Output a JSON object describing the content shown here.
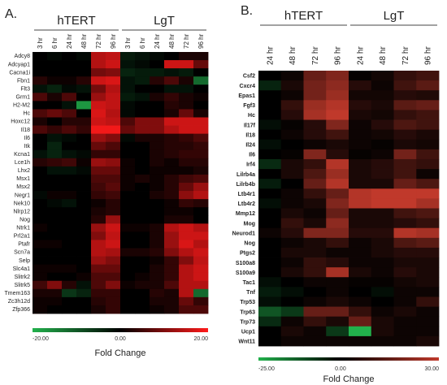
{
  "chart_data": [
    {
      "type": "heatmap",
      "panel_label": "A.",
      "groups": [
        "hTERT",
        "LgT"
      ],
      "columns": [
        "3 hr",
        "6 hr",
        "24 hr",
        "48 hr",
        "72 hr",
        "96 hr",
        "3 hr",
        "6 hr",
        "24 hr",
        "48 hr",
        "72 hr",
        "96 hr"
      ],
      "rows": [
        {
          "label": "Adcy8",
          "values": [
            0,
            -1,
            0,
            -1,
            14,
            15,
            -3,
            -2,
            -1,
            0,
            2,
            2
          ]
        },
        {
          "label": "Adcyap1",
          "values": [
            0,
            0,
            0,
            0,
            14,
            16,
            -2,
            -1,
            0,
            16,
            16,
            8
          ]
        },
        {
          "label": "Cacna1i",
          "values": [
            0,
            0,
            0,
            0,
            9,
            10,
            -4,
            -3,
            -3,
            -2,
            -3,
            0
          ]
        },
        {
          "label": "Fbn1",
          "values": [
            3,
            1,
            1,
            3,
            16,
            17,
            -2,
            -3,
            3,
            6,
            2,
            -12
          ]
        },
        {
          "label": "Flt3",
          "values": [
            -2,
            -4,
            -1,
            -2,
            9,
            14,
            -2,
            0,
            0,
            -2,
            -2,
            0
          ]
        },
        {
          "label": "Grm1",
          "values": [
            6,
            2,
            6,
            0,
            12,
            15,
            -3,
            -2,
            2,
            4,
            2,
            1
          ]
        },
        {
          "label": "H2-M2",
          "values": [
            0,
            0,
            -2,
            -17,
            16,
            15,
            -1,
            0,
            0,
            3,
            2,
            0
          ]
        },
        {
          "label": "Hc",
          "values": [
            6,
            8,
            6,
            0,
            17,
            14,
            -1,
            0,
            0,
            2,
            8,
            2
          ]
        },
        {
          "label": "Hoxc12",
          "values": [
            2,
            0,
            3,
            3,
            16,
            15,
            6,
            10,
            10,
            16,
            16,
            16
          ]
        },
        {
          "label": "Il18",
          "values": [
            6,
            4,
            6,
            4,
            19,
            19,
            8,
            10,
            10,
            14,
            16,
            16
          ]
        },
        {
          "label": "Il6",
          "values": [
            0,
            -2,
            -1,
            0,
            12,
            10,
            -1,
            2,
            2,
            3,
            4,
            6
          ]
        },
        {
          "label": "Itk",
          "values": [
            0,
            -4,
            0,
            0,
            8,
            6,
            0,
            0,
            2,
            3,
            3,
            4
          ]
        },
        {
          "label": "Kcna1",
          "values": [
            -2,
            -4,
            -2,
            -1,
            4,
            4,
            0,
            0,
            2,
            3,
            4,
            4
          ]
        },
        {
          "label": "Lce1h",
          "values": [
            3,
            4,
            5,
            1,
            12,
            11,
            1,
            0,
            2,
            1,
            3,
            3
          ]
        },
        {
          "label": "Lhx2",
          "values": [
            0,
            -2,
            -2,
            -1,
            8,
            8,
            1,
            0,
            1,
            1,
            1,
            2
          ]
        },
        {
          "label": "Msx1",
          "values": [
            0,
            0,
            0,
            0,
            6,
            6,
            1,
            2,
            1,
            3,
            5,
            6
          ]
        },
        {
          "label": "Msx2",
          "values": [
            0,
            0,
            0,
            0,
            5,
            7,
            1,
            0,
            1,
            3,
            8,
            12
          ]
        },
        {
          "label": "Negr1",
          "values": [
            -1,
            1,
            1,
            0,
            4,
            5,
            0,
            0,
            2,
            3,
            11,
            14
          ]
        },
        {
          "label": "Nek10",
          "values": [
            0,
            -1,
            -2,
            0,
            1,
            3,
            0,
            0,
            0,
            1,
            4,
            3
          ]
        },
        {
          "label": "Nlrp12",
          "values": [
            0,
            0,
            0,
            0,
            2,
            3,
            0,
            0,
            0,
            1,
            1,
            0
          ]
        },
        {
          "label": "Nog",
          "values": [
            0,
            0,
            0,
            0,
            3,
            12,
            0,
            0,
            0,
            2,
            2,
            0
          ]
        },
        {
          "label": "Ntrk1",
          "values": [
            1,
            0,
            0,
            0,
            12,
            16,
            1,
            1,
            2,
            14,
            16,
            14
          ]
        },
        {
          "label": "Prl2a1",
          "values": [
            0,
            0,
            0,
            0,
            10,
            15,
            0,
            0,
            2,
            12,
            16,
            16
          ]
        },
        {
          "label": "Ptafr",
          "values": [
            1,
            1,
            0,
            0,
            14,
            16,
            0,
            0,
            2,
            12,
            17,
            14
          ]
        },
        {
          "label": "Scn7a",
          "values": [
            0,
            0,
            0,
            0,
            14,
            13,
            2,
            2,
            3,
            10,
            14,
            16
          ]
        },
        {
          "label": "Selp",
          "values": [
            0,
            0,
            0,
            0,
            12,
            10,
            0,
            0,
            1,
            4,
            10,
            15
          ]
        },
        {
          "label": "Slc4a1",
          "values": [
            1,
            1,
            1,
            0,
            8,
            8,
            0,
            0,
            2,
            4,
            14,
            16
          ]
        },
        {
          "label": "Slitrk2",
          "values": [
            1,
            0,
            0,
            1,
            6,
            6,
            0,
            1,
            2,
            4,
            14,
            16
          ]
        },
        {
          "label": "Slitrk5",
          "values": [
            5,
            10,
            3,
            -2,
            6,
            10,
            1,
            2,
            2,
            6,
            14,
            14
          ]
        },
        {
          "label": "Tmem163",
          "values": [
            2,
            2,
            -6,
            -4,
            4,
            4,
            0,
            0,
            3,
            2,
            14,
            -12
          ]
        },
        {
          "label": "Zc3h12d",
          "values": [
            1,
            1,
            0,
            0,
            3,
            4,
            0,
            0,
            2,
            2,
            8,
            4
          ]
        },
        {
          "label": "Zfp366",
          "values": [
            1,
            0,
            0,
            0,
            2,
            4,
            0,
            0,
            1,
            2,
            6,
            6
          ]
        }
      ],
      "colorbar": {
        "min_label": "-20.00",
        "mid_label": "0.00",
        "max_label": "20.00",
        "min": -20,
        "max": 20,
        "low_color": "#22b14c",
        "mid_color": "#000000",
        "high_color": "#ff1a1a"
      },
      "xlabel": "Fold Change"
    },
    {
      "type": "heatmap",
      "panel_label": "B.",
      "groups": [
        "hTERT",
        "LgT"
      ],
      "columns": [
        "24 hr",
        "48 hr",
        "72 hr",
        "96 hr",
        "24 hr",
        "48 hr",
        "72 hr",
        "96 hr"
      ],
      "rows": [
        {
          "label": "Csf2",
          "values": [
            0,
            2,
            16,
            20,
            1,
            3,
            8,
            10
          ]
        },
        {
          "label": "Cxcr4",
          "values": [
            -5,
            4,
            18,
            22,
            6,
            2,
            10,
            14
          ]
        },
        {
          "label": "Epas1",
          "values": [
            0,
            2,
            18,
            24,
            3,
            3,
            6,
            5
          ]
        },
        {
          "label": "Fgf3",
          "values": [
            0,
            8,
            24,
            28,
            6,
            4,
            14,
            16
          ]
        },
        {
          "label": "Hc",
          "values": [
            0,
            6,
            26,
            30,
            4,
            3,
            8,
            10
          ]
        },
        {
          "label": "Il17f",
          "values": [
            -2,
            1,
            6,
            20,
            2,
            6,
            12,
            10
          ]
        },
        {
          "label": "Il18",
          "values": [
            0,
            2,
            6,
            10,
            2,
            3,
            6,
            4
          ]
        },
        {
          "label": "Il24",
          "values": [
            -2,
            0,
            2,
            4,
            2,
            1,
            4,
            3
          ]
        },
        {
          "label": "Il6",
          "values": [
            0,
            1,
            20,
            6,
            1,
            2,
            18,
            10
          ]
        },
        {
          "label": "Irf4",
          "values": [
            -6,
            4,
            8,
            28,
            4,
            6,
            10,
            8
          ]
        },
        {
          "label": "Lilrb4a",
          "values": [
            0,
            4,
            12,
            24,
            4,
            6,
            10,
            2
          ]
        },
        {
          "label": "Lilrb4b",
          "values": [
            -4,
            0,
            16,
            28,
            4,
            4,
            16,
            12
          ]
        },
        {
          "label": "Ltb4r1",
          "values": [
            0,
            2,
            8,
            16,
            28,
            30,
            30,
            30
          ]
        },
        {
          "label": "Ltb4r2",
          "values": [
            -2,
            2,
            4,
            20,
            28,
            30,
            30,
            26
          ]
        },
        {
          "label": "Mmp12",
          "values": [
            0,
            4,
            2,
            16,
            4,
            4,
            10,
            12
          ]
        },
        {
          "label": "Mog",
          "values": [
            0,
            8,
            4,
            22,
            4,
            4,
            6,
            8
          ]
        },
        {
          "label": "Neurod1",
          "values": [
            2,
            6,
            20,
            20,
            6,
            6,
            28,
            26
          ]
        },
        {
          "label": "Nog",
          "values": [
            0,
            2,
            4,
            8,
            2,
            4,
            12,
            14
          ]
        },
        {
          "label": "Ptgs2",
          "values": [
            0,
            4,
            4,
            2,
            2,
            4,
            6,
            6
          ]
        },
        {
          "label": "S100a8",
          "values": [
            0,
            2,
            8,
            6,
            2,
            2,
            4,
            4
          ]
        },
        {
          "label": "S100a9",
          "values": [
            0,
            4,
            8,
            26,
            4,
            2,
            6,
            4
          ]
        },
        {
          "label": "Tac1",
          "values": [
            -2,
            0,
            2,
            2,
            1,
            1,
            3,
            4
          ]
        },
        {
          "label": "Tnf",
          "values": [
            -4,
            -2,
            0,
            2,
            0,
            -2,
            2,
            2
          ]
        },
        {
          "label": "Trp53",
          "values": [
            -2,
            0,
            2,
            4,
            2,
            0,
            2,
            8
          ]
        },
        {
          "label": "Trp63",
          "values": [
            -12,
            -8,
            16,
            16,
            8,
            2,
            4,
            2
          ]
        },
        {
          "label": "Trp73",
          "values": [
            -6,
            2,
            8,
            4,
            16,
            4,
            2,
            2
          ]
        },
        {
          "label": "Ucp1",
          "values": [
            0,
            4,
            2,
            -8,
            -25,
            4,
            2,
            2
          ]
        },
        {
          "label": "Wnt11",
          "values": [
            0,
            2,
            2,
            2,
            2,
            2,
            2,
            4
          ]
        }
      ],
      "colorbar": {
        "min_label": "-25.00",
        "mid_label": "0.00",
        "max_label": "30.00",
        "min": -25,
        "max": 30,
        "low_color": "#22b14c",
        "mid_color": "#000000",
        "high_color": "#c0392b"
      },
      "xlabel": "Fold Change"
    }
  ]
}
